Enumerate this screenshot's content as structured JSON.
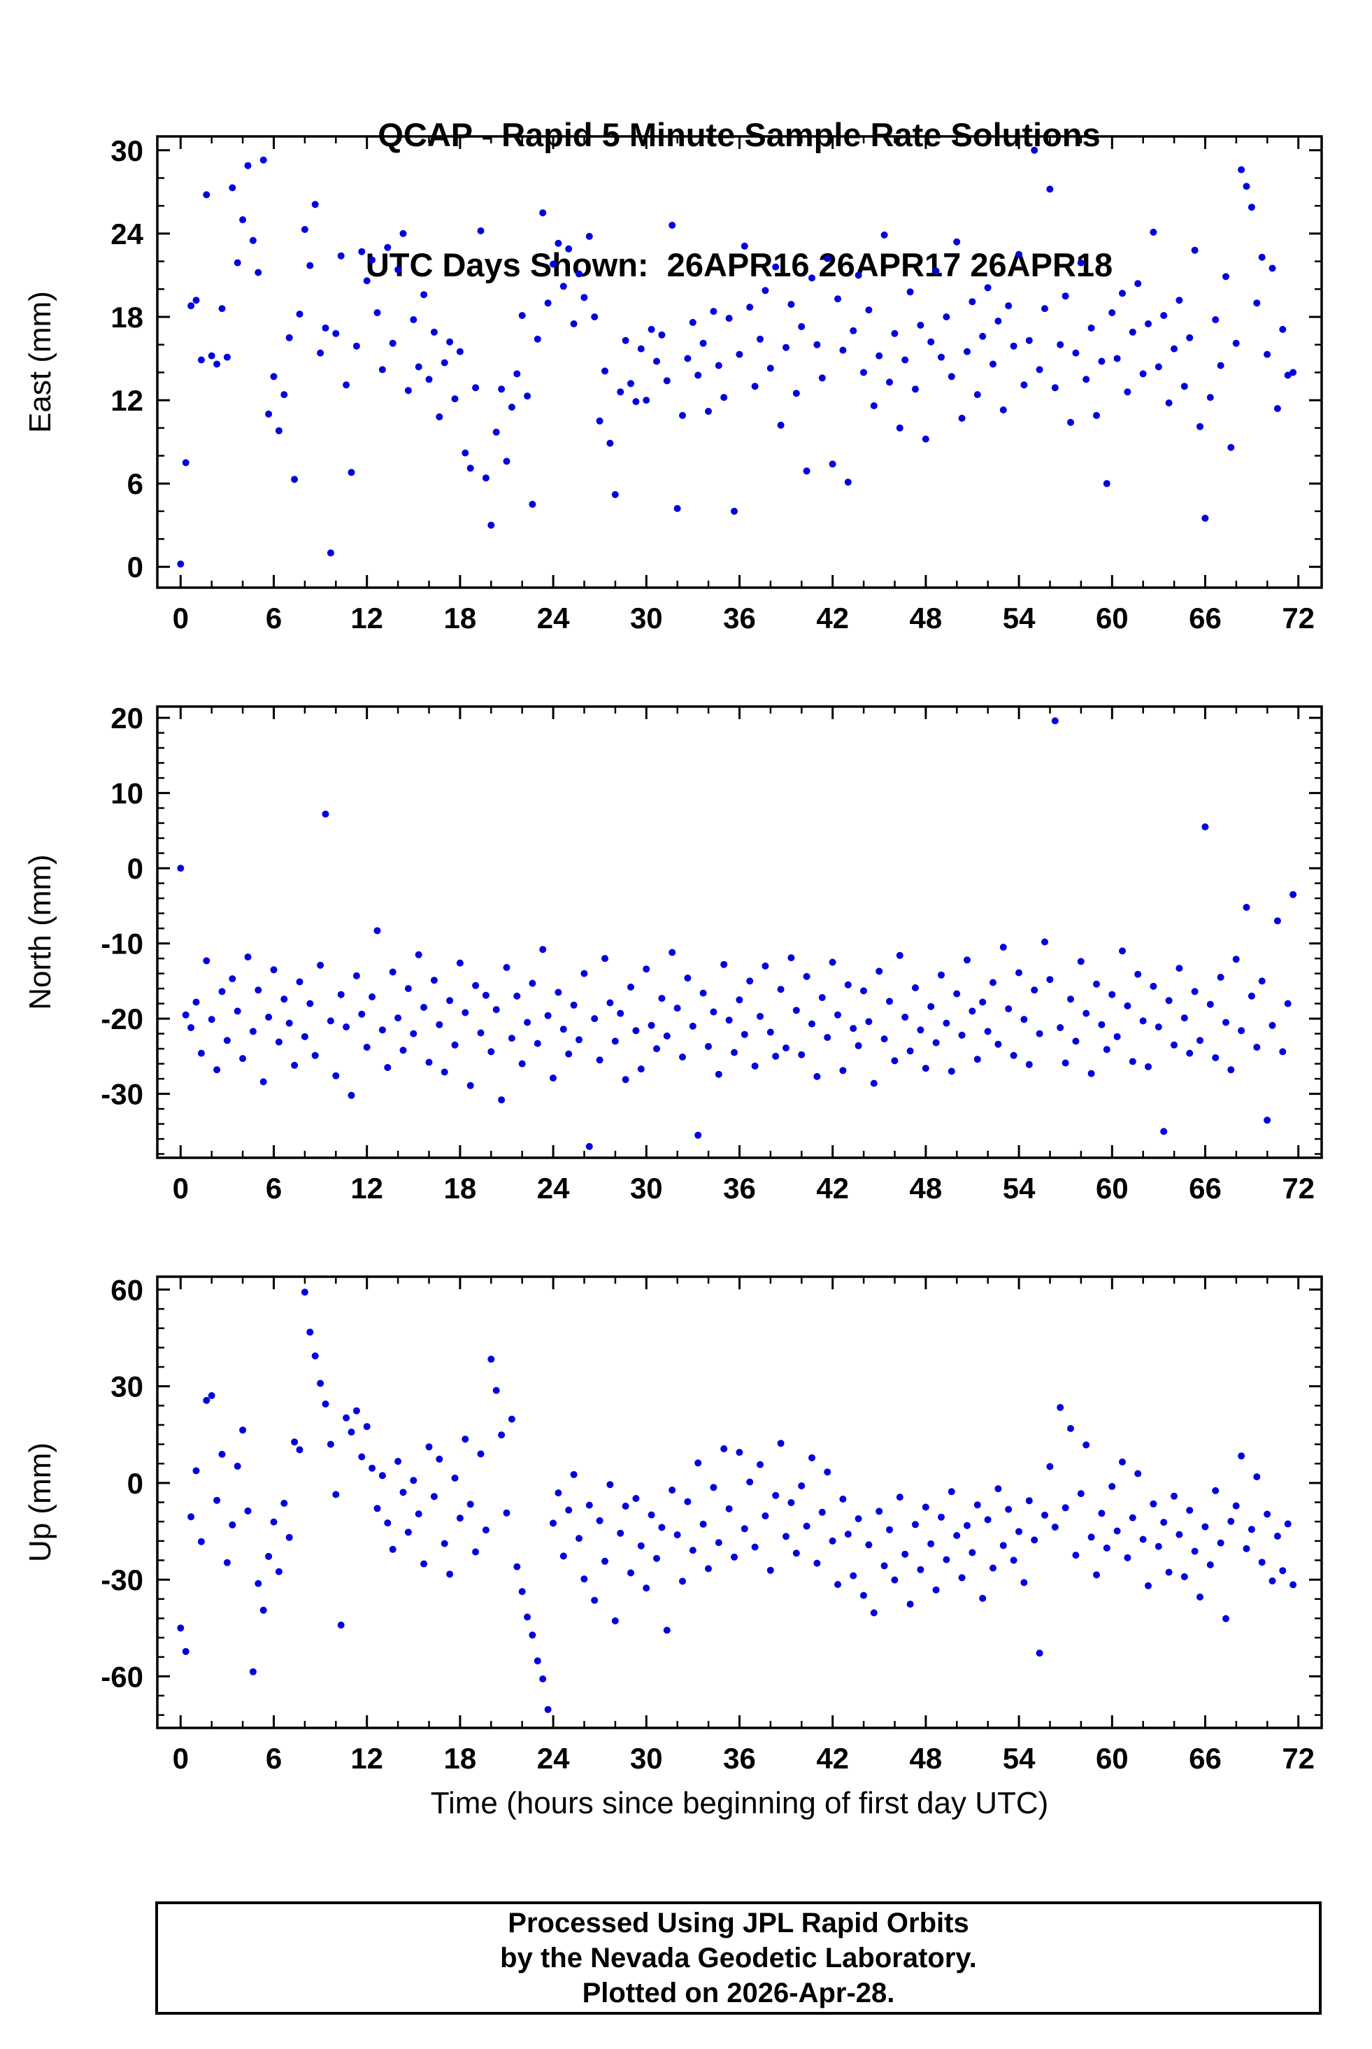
{
  "title": {
    "line1": "QCAP - Rapid 5 Minute Sample Rate Solutions",
    "line2": "UTC Days Shown:  26APR16 26APR17 26APR18"
  },
  "footer": {
    "line1": "Processed Using JPL Rapid Orbits",
    "line2": "by the Nevada Geodetic Laboratory.",
    "line3": "Plotted on 2026-Apr-28."
  },
  "chart_data": {
    "type": "scatter",
    "xlabel": "Time (hours since beginning of first day UTC)",
    "x_ticks": [
      0,
      6,
      12,
      18,
      24,
      30,
      36,
      42,
      48,
      54,
      60,
      66,
      72
    ],
    "x_minor": 2,
    "xlim": [
      -1.5,
      73.5
    ],
    "x_start": 0,
    "x_step": 0.3333,
    "marker_color": "#0000e0",
    "grid": false,
    "legend": "none",
    "panels": [
      {
        "ylabel": "East (mm)",
        "y_ticks": [
          0,
          6,
          12,
          18,
          24,
          30
        ],
        "y_minor": 2,
        "ylim": [
          -1.5,
          31
        ],
        "y": [
          0.2,
          7.5,
          18.8,
          19.2,
          14.9,
          26.8,
          15.2,
          14.6,
          18.6,
          15.1,
          27.3,
          21.9,
          25.0,
          28.9,
          23.5,
          21.2,
          29.3,
          11.0,
          13.7,
          9.8,
          12.4,
          16.5,
          6.3,
          18.2,
          24.3,
          21.7,
          26.1,
          15.4,
          17.2,
          1.0,
          16.8,
          22.4,
          13.1,
          6.8,
          15.9,
          22.7,
          20.6,
          22.1,
          18.3,
          14.2,
          23.0,
          16.1,
          21.4,
          24.0,
          12.7,
          17.8,
          14.4,
          19.6,
          13.5,
          16.9,
          10.8,
          14.7,
          16.2,
          12.1,
          15.5,
          8.2,
          7.1,
          12.9,
          24.2,
          6.4,
          3.0,
          9.7,
          12.8,
          7.6,
          11.5,
          13.9,
          18.1,
          12.3,
          4.5,
          16.4,
          25.5,
          19.0,
          21.8,
          23.3,
          20.2,
          22.9,
          17.5,
          21.1,
          19.4,
          23.8,
          18.0,
          10.5,
          14.1,
          8.9,
          5.2,
          12.6,
          16.3,
          13.2,
          11.9,
          15.7,
          12.0,
          17.1,
          14.8,
          16.7,
          13.4,
          24.6,
          4.2,
          10.9,
          15.0,
          17.6,
          13.8,
          16.1,
          11.2,
          18.4,
          14.5,
          12.2,
          17.9,
          4.0,
          15.3,
          23.1,
          18.7,
          13.0,
          16.4,
          19.9,
          14.3,
          21.6,
          10.2,
          15.8,
          18.9,
          12.5,
          17.3,
          6.9,
          20.8,
          16.0,
          13.6,
          22.2,
          7.4,
          19.3,
          15.6,
          6.1,
          17.0,
          21.0,
          14.0,
          18.5,
          11.6,
          15.2,
          23.9,
          13.3,
          16.8,
          10.0,
          14.9,
          19.8,
          12.8,
          17.4,
          9.2,
          16.2,
          21.3,
          15.1,
          18.0,
          13.7,
          23.4,
          10.7,
          15.5,
          19.1,
          12.4,
          16.6,
          20.1,
          14.6,
          17.7,
          11.3,
          18.8,
          15.9,
          22.5,
          13.1,
          16.3,
          30.0,
          14.2,
          18.6,
          27.2,
          12.9,
          16.0,
          19.5,
          10.4,
          15.4,
          21.9,
          13.5,
          17.2,
          10.9,
          14.8,
          6.0,
          18.3,
          15.0,
          19.7,
          12.6,
          16.9,
          20.4,
          13.9,
          17.5,
          24.1,
          14.4,
          18.1,
          11.8,
          15.7,
          19.2,
          13.0,
          16.5,
          22.8,
          10.1,
          3.5,
          12.2,
          17.8,
          14.5,
          20.9,
          8.6,
          16.1,
          28.6,
          27.4,
          25.9,
          19.0,
          22.3,
          15.3,
          21.5,
          11.4,
          17.1,
          13.8,
          14.0
        ]
      },
      {
        "ylabel": "North (mm)",
        "y_ticks": [
          -30,
          -20,
          -10,
          0,
          10,
          20
        ],
        "y_minor": 2,
        "ylim": [
          -38.5,
          21.5
        ],
        "y": [
          0.0,
          -19.5,
          -21.2,
          -17.8,
          -24.6,
          -12.3,
          -20.1,
          -26.8,
          -16.4,
          -22.9,
          -14.7,
          -19.0,
          -25.3,
          -11.8,
          -21.7,
          -16.2,
          -28.4,
          -19.8,
          -13.5,
          -23.1,
          -17.4,
          -20.6,
          -26.2,
          -15.1,
          -22.4,
          -18.0,
          -24.9,
          -12.9,
          7.2,
          -20.3,
          -27.6,
          -16.8,
          -21.1,
          -30.2,
          -14.3,
          -19.4,
          -23.8,
          -17.1,
          -8.3,
          -21.5,
          -26.5,
          -13.8,
          -19.9,
          -24.2,
          -16.0,
          -22.0,
          -11.5,
          -18.5,
          -25.8,
          -14.9,
          -20.8,
          -27.1,
          -17.6,
          -23.5,
          -12.6,
          -19.2,
          -28.9,
          -15.6,
          -21.9,
          -16.9,
          -24.4,
          -18.8,
          -30.8,
          -13.2,
          -22.6,
          -17.0,
          -26.0,
          -20.5,
          -15.3,
          -23.3,
          -10.8,
          -19.6,
          -27.9,
          -16.5,
          -21.4,
          -24.7,
          -18.2,
          -22.8,
          -14.0,
          -37.0,
          -20.0,
          -25.5,
          -12.0,
          -17.9,
          -23.0,
          -19.3,
          -28.1,
          -15.8,
          -21.6,
          -26.7,
          -13.4,
          -20.9,
          -24.0,
          -17.3,
          -22.3,
          -11.2,
          -18.6,
          -25.1,
          -14.6,
          -21.0,
          -35.5,
          -16.6,
          -23.7,
          -19.1,
          -27.4,
          -12.8,
          -20.2,
          -24.5,
          -17.5,
          -22.1,
          -15.0,
          -26.3,
          -19.7,
          -13.0,
          -21.8,
          -25.0,
          -16.1,
          -23.9,
          -11.9,
          -18.9,
          -24.8,
          -14.4,
          -20.7,
          -27.7,
          -17.2,
          -22.5,
          -12.5,
          -19.5,
          -26.9,
          -15.5,
          -21.3,
          -23.6,
          -16.3,
          -20.4,
          -28.6,
          -13.7,
          -22.7,
          -17.7,
          -25.6,
          -11.6,
          -19.8,
          -24.3,
          -15.9,
          -21.5,
          -26.6,
          -18.4,
          -23.2,
          -14.2,
          -20.6,
          -27.0,
          -16.7,
          -22.2,
          -12.2,
          -19.0,
          -25.4,
          -17.8,
          -21.7,
          -15.2,
          -23.4,
          -10.5,
          -18.7,
          -24.9,
          -13.9,
          -20.1,
          -26.1,
          -16.2,
          -22.0,
          -9.8,
          -14.8,
          19.6,
          -21.2,
          -25.9,
          -17.4,
          -23.0,
          -12.4,
          -19.3,
          -27.3,
          -15.4,
          -20.8,
          -24.1,
          -16.8,
          -22.4,
          -11.0,
          -18.3,
          -25.7,
          -14.1,
          -20.3,
          -26.4,
          -15.7,
          -21.1,
          -35.0,
          -17.6,
          -23.5,
          -13.3,
          -19.9,
          -24.6,
          -16.4,
          -22.9,
          5.5,
          -18.1,
          -25.2,
          -14.5,
          -20.5,
          -26.8,
          -12.1,
          -21.6,
          -5.2,
          -17.0,
          -23.8,
          -15.0,
          -33.5,
          -20.9,
          -7.0,
          -24.4,
          -18.0,
          -3.5
        ]
      },
      {
        "ylabel": "Up (mm)",
        "y_ticks": [
          -60,
          -30,
          0,
          30,
          60
        ],
        "y_minor": 6,
        "ylim": [
          -76,
          64
        ],
        "y": [
          -45.0,
          -52.3,
          -10.5,
          3.8,
          -18.2,
          25.6,
          27.1,
          -5.4,
          8.9,
          -24.7,
          -13.0,
          5.2,
          16.4,
          -8.7,
          -58.6,
          -31.2,
          -39.5,
          -22.8,
          -12.1,
          -27.5,
          -6.3,
          -16.9,
          12.7,
          10.3,
          59.2,
          46.8,
          39.4,
          30.9,
          24.5,
          12.0,
          -3.6,
          -44.1,
          20.2,
          15.8,
          22.4,
          8.1,
          17.5,
          4.6,
          -7.9,
          2.3,
          -12.4,
          -20.6,
          6.7,
          -2.9,
          -15.3,
          0.8,
          -9.6,
          -25.1,
          11.2,
          -4.2,
          7.4,
          -18.8,
          -28.3,
          1.5,
          -10.9,
          13.6,
          -6.6,
          -21.4,
          9.0,
          -14.6,
          38.4,
          28.7,
          14.9,
          -9.3,
          19.8,
          -26.0,
          -33.7,
          -41.6,
          -47.2,
          -55.2,
          -60.8,
          -70.3,
          -12.5,
          -3.1,
          -22.7,
          -8.4,
          2.6,
          -17.2,
          -29.8,
          -6.9,
          -36.4,
          -11.7,
          -24.3,
          -0.5,
          -42.8,
          -15.6,
          -7.2,
          -27.9,
          -4.8,
          -19.5,
          -32.6,
          -9.9,
          -23.4,
          -13.8,
          -45.7,
          -2.2,
          -16.1,
          -30.5,
          -5.8,
          -20.9,
          6.2,
          -12.8,
          -26.6,
          -1.4,
          -18.5,
          10.6,
          -8.0,
          -23.0,
          9.5,
          -14.2,
          0.3,
          -19.9,
          5.7,
          -10.2,
          -27.1,
          -3.9,
          12.3,
          -16.6,
          -6.1,
          -21.8,
          -0.9,
          -13.4,
          7.8,
          -24.9,
          -9.1,
          3.4,
          -18.0,
          -31.5,
          -5.0,
          -15.9,
          -28.8,
          -11.1,
          -34.9,
          -19.2,
          -40.3,
          -8.8,
          -25.7,
          -14.5,
          -30.1,
          -4.4,
          -22.1,
          -37.6,
          -12.9,
          -26.9,
          -7.5,
          -18.9,
          -33.2,
          -10.6,
          -23.8,
          -2.7,
          -16.3,
          -29.4,
          -13.2,
          -21.6,
          -6.8,
          -35.8,
          -11.4,
          -26.4,
          -1.8,
          -19.4,
          -8.2,
          -24.0,
          -15.1,
          -30.9,
          -5.5,
          -17.7,
          -52.8,
          -10.0,
          5.1,
          -13.7,
          23.4,
          -7.7,
          16.9,
          -22.4,
          -3.3,
          11.8,
          -16.8,
          -28.5,
          -9.4,
          -20.2,
          -1.1,
          -14.9,
          6.5,
          -23.2,
          -10.8,
          2.9,
          -17.5,
          -31.9,
          -6.5,
          -19.7,
          -12.2,
          -27.7,
          -4.1,
          -16.0,
          -29.1,
          -8.5,
          -21.2,
          -35.4,
          -13.6,
          -25.4,
          -2.4,
          -18.6,
          -42.1,
          -11.9,
          -7.1,
          8.4,
          -20.4,
          -14.4,
          1.9,
          -24.6,
          -9.7,
          -30.4,
          -16.5,
          -27.2,
          -12.7,
          -31.6
        ]
      }
    ]
  }
}
